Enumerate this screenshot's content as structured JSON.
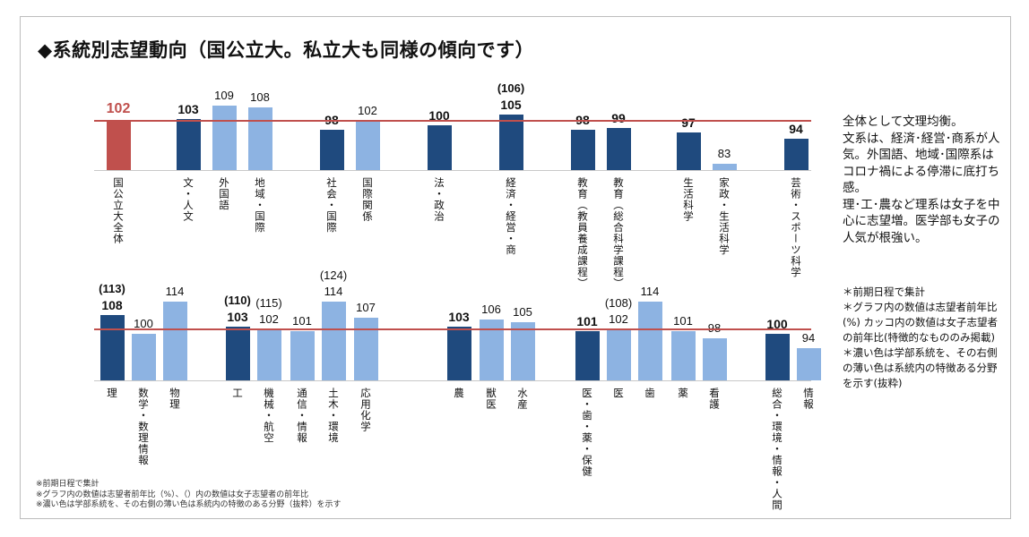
{
  "title": "◆系統別志望動向（国公立大。私立大も同様の傾向です）",
  "colors": {
    "overall": "#c0504d",
    "faculty": "#1f4a7e",
    "field": "#8db3e2",
    "reference_line": "#c0504d"
  },
  "chart_data": [
    {
      "type": "bar",
      "reference_line": 102,
      "categories": [
        "国公立大全体",
        "文・人文",
        "外国語",
        "地域・国際",
        "社会・国際",
        "国際関係",
        "法・政治",
        "経済・経営・商",
        "教育（教員養成課程）",
        "教育（総合科学課程）",
        "生活科学",
        "家政・生活科学",
        "芸術・スポーツ科学"
      ],
      "values": [
        102,
        103,
        109,
        108,
        98,
        102,
        100,
        105,
        98,
        99,
        97,
        83,
        94
      ],
      "female_values": [
        null,
        null,
        null,
        null,
        null,
        null,
        null,
        106,
        null,
        null,
        null,
        null,
        null
      ],
      "kinds": [
        "overall",
        "faculty",
        "field",
        "field",
        "faculty",
        "field",
        "faculty",
        "faculty",
        "faculty",
        "faculty",
        "faculty",
        "field",
        "faculty"
      ]
    },
    {
      "type": "bar",
      "reference_line": 102,
      "categories": [
        "理",
        "数学・数理情報",
        "物理",
        "工",
        "機械・航空",
        "通信・情報",
        "土木・環境",
        "応用化学",
        "農",
        "獣医",
        "水産",
        "医・歯・薬・保健",
        "医",
        "歯",
        "薬",
        "看護",
        "総合・環境・情報・人間",
        "情報"
      ],
      "values": [
        108,
        100,
        114,
        103,
        102,
        101,
        114,
        107,
        103,
        106,
        105,
        101,
        102,
        114,
        101,
        98,
        100,
        94
      ],
      "female_values": [
        113,
        null,
        null,
        110,
        115,
        null,
        124,
        null,
        null,
        null,
        null,
        null,
        108,
        null,
        null,
        null,
        null,
        null
      ],
      "kinds": [
        "faculty",
        "field",
        "field",
        "faculty",
        "field",
        "field",
        "field",
        "field",
        "faculty",
        "field",
        "field",
        "faculty",
        "field",
        "field",
        "field",
        "field",
        "faculty",
        "field"
      ]
    }
  ],
  "summary": [
    "全体として文理均衡。",
    "文系は、経済･経営･商系が人気。外国語、地域･国際系はコロナ禍による停滞に底打ち感。",
    "理･工･農など理系は女子を中心に志望増。医学部も女子の人気が根強い。"
  ],
  "side_notes": [
    "＊前期日程で集計",
    "＊グラフ内の数値は志望者前年比(%) カッコ内の数値は女子志望者の前年比(特徴的なもののみ掲載)",
    "＊濃い色は学部系統を、その右側の薄い色は系統内の特徴ある分野を示す(抜粋)"
  ],
  "footnotes": [
    "※前期日程で集計",
    "※グラフ内の数値は志望者前年比（%）、（）内の数値は女子志望者の前年比",
    "※濃い色は学部系統を、その右側の薄い色は系統内の特徴のある分野（抜粋）を示す"
  ]
}
